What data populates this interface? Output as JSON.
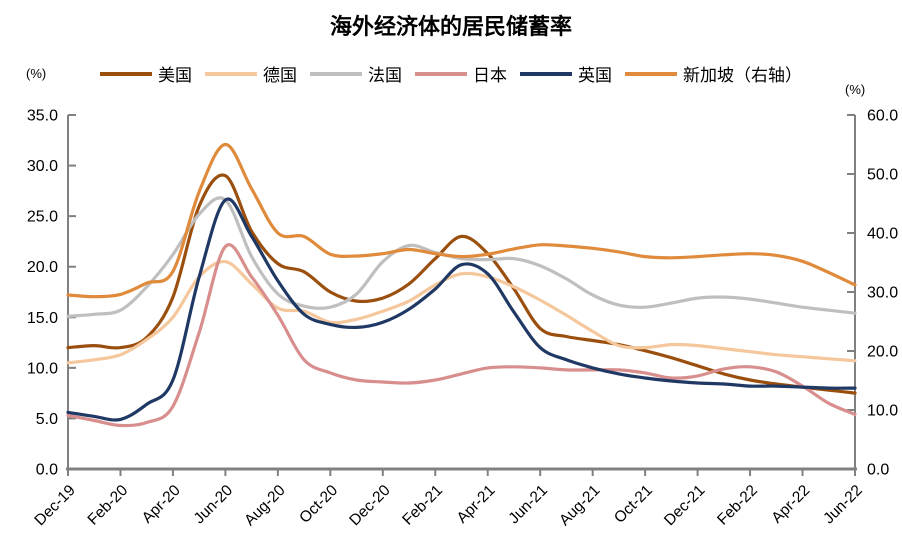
{
  "page": {
    "title": "海外经济体的居民储蓄率"
  },
  "axes": {
    "left_unit": "(%)",
    "right_unit": "(%)"
  },
  "chart_data": {
    "type": "line",
    "title": "海外经济体的居民储蓄率",
    "x_tick_labels": [
      "Dec-19",
      "Feb-20",
      "Apr-20",
      "Jun-20",
      "Aug-20",
      "Oct-20",
      "Dec-20",
      "Feb-21",
      "Apr-21",
      "Jun-21",
      "Aug-21",
      "Oct-21",
      "Dec-21",
      "Feb-22",
      "Apr-22",
      "Jun-22"
    ],
    "points_per_series": 31,
    "x_ticks_every_n_points": 2,
    "grid": false,
    "legend_position": "top",
    "axis_color": "#808080",
    "left_axis": {
      "min": 0,
      "max": 35,
      "tick_step": 5,
      "tick_labels": [
        "0.0",
        "5.0",
        "10.0",
        "15.0",
        "20.0",
        "25.0",
        "30.0",
        "35.0"
      ],
      "unit": "(%)"
    },
    "right_axis": {
      "min": 0,
      "max": 60,
      "tick_step": 10,
      "tick_labels": [
        "0.0",
        "10.0",
        "20.0",
        "30.0",
        "40.0",
        "50.0",
        "60.0"
      ],
      "unit": "(%)"
    },
    "series": [
      {
        "key": "us",
        "name": "美国",
        "axis": "left",
        "color": "#9B4F0E",
        "values": [
          12.0,
          12.2,
          12.0,
          13.0,
          17.0,
          26.0,
          29.0,
          23.5,
          20.3,
          19.5,
          17.5,
          16.6,
          16.9,
          18.3,
          20.8,
          23.0,
          21.3,
          17.8,
          13.9,
          13.1,
          12.7,
          12.3,
          11.7,
          11.0,
          10.2,
          9.4,
          8.8,
          8.4,
          8.1,
          7.8,
          7.5
        ]
      },
      {
        "key": "germany",
        "name": "德国",
        "axis": "left",
        "color": "#F4C79C",
        "values": [
          10.5,
          10.8,
          11.3,
          12.8,
          15.0,
          19.0,
          20.5,
          18.3,
          15.9,
          15.6,
          14.5,
          14.8,
          15.6,
          16.6,
          18.2,
          19.3,
          19.0,
          18.0,
          16.7,
          15.2,
          13.6,
          12.2,
          12.0,
          12.3,
          12.2,
          11.9,
          11.6,
          11.3,
          11.1,
          10.9,
          10.7
        ]
      },
      {
        "key": "france",
        "name": "法国",
        "axis": "left",
        "color": "#BFBFBF",
        "values": [
          15.1,
          15.3,
          15.7,
          18.0,
          21.2,
          25.2,
          26.6,
          21.0,
          17.3,
          16.1,
          16.0,
          17.3,
          20.5,
          22.1,
          21.4,
          20.8,
          20.7,
          20.8,
          20.1,
          18.8,
          17.2,
          16.2,
          16.0,
          16.4,
          16.9,
          17.0,
          16.8,
          16.4,
          16.0,
          15.7,
          15.4
        ]
      },
      {
        "key": "japan",
        "name": "日本",
        "axis": "left",
        "color": "#D98E8E",
        "values": [
          5.3,
          4.8,
          4.3,
          4.6,
          6.2,
          13.5,
          22.0,
          19.0,
          15.2,
          10.8,
          9.5,
          8.8,
          8.6,
          8.5,
          8.8,
          9.4,
          10.0,
          10.1,
          10.0,
          9.8,
          9.8,
          9.8,
          9.5,
          9.0,
          9.2,
          9.9,
          10.1,
          9.6,
          8.2,
          6.5,
          5.4
        ]
      },
      {
        "key": "uk",
        "name": "英国",
        "axis": "left",
        "color": "#1F3864",
        "values": [
          5.6,
          5.2,
          4.9,
          6.4,
          8.8,
          19.0,
          26.6,
          23.0,
          18.6,
          15.3,
          14.3,
          14.0,
          14.5,
          15.8,
          17.8,
          20.2,
          19.3,
          15.5,
          12.0,
          10.8,
          10.0,
          9.4,
          9.0,
          8.7,
          8.5,
          8.4,
          8.2,
          8.2,
          8.1,
          8.0,
          8.0
        ]
      },
      {
        "key": "singapore",
        "name": "新加坡（右轴）",
        "axis": "right",
        "color": "#E08A3C",
        "values": [
          29.5,
          29.2,
          29.6,
          31.5,
          33.5,
          47.0,
          55.0,
          47.5,
          40.0,
          39.4,
          36.4,
          36.1,
          36.5,
          37.2,
          36.5,
          36.0,
          36.4,
          37.3,
          38.0,
          37.8,
          37.4,
          36.8,
          36.0,
          35.8,
          36.0,
          36.3,
          36.5,
          36.2,
          35.2,
          33.3,
          31.2
        ]
      }
    ]
  }
}
